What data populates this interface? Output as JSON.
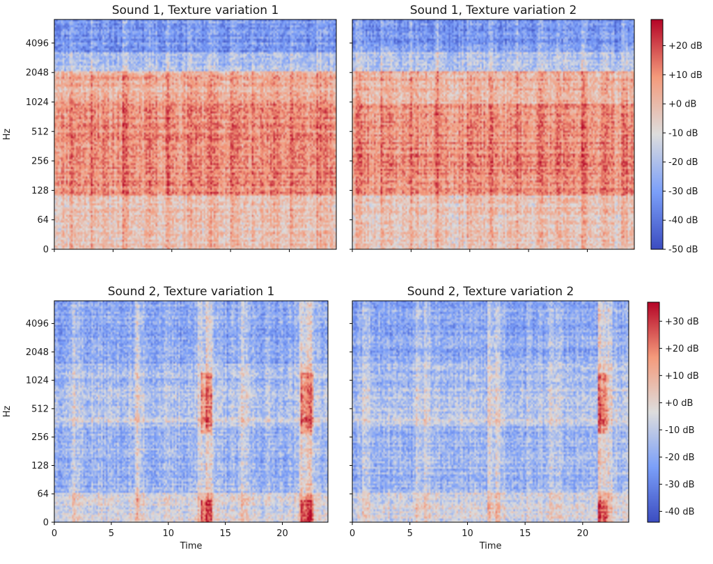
{
  "chart_data": [
    {
      "type": "heatmap",
      "subtype": "spectrogram",
      "title": "Sound 1, Texture variation 1",
      "ylabel": "Hz",
      "xlabel": "",
      "y_scale": "log2",
      "y_ticks": [
        "0",
        "64",
        "128",
        "256",
        "512",
        "1024",
        "2048",
        "4096"
      ],
      "xlim": [
        0,
        24
      ],
      "x_ticks": [],
      "colorbar_group": 0,
      "profile": "sound1",
      "seed": 11,
      "onsets": [
        1.3,
        3.2,
        5.8,
        7.9,
        9.6,
        11.4,
        13.1,
        15.0,
        16.9,
        18.7,
        20.1,
        22.4
      ]
    },
    {
      "type": "heatmap",
      "subtype": "spectrogram",
      "title": "Sound 1, Texture variation 2",
      "ylabel": "",
      "xlabel": "",
      "y_scale": "log2",
      "y_ticks": [],
      "xlim": [
        0,
        24
      ],
      "x_ticks": [],
      "colorbar_group": 0,
      "profile": "sound1",
      "seed": 23,
      "onsets": [
        0.4,
        2.5,
        4.9,
        7.2,
        9.8,
        11.6,
        13.9,
        15.8,
        17.4,
        19.6,
        21.3,
        23.0
      ]
    },
    {
      "type": "heatmap",
      "subtype": "spectrogram",
      "title": "Sound 2, Texture variation 1",
      "ylabel": "Hz",
      "xlabel": "Time",
      "y_scale": "log2",
      "y_ticks": [
        "0",
        "64",
        "128",
        "256",
        "512",
        "1024",
        "2048",
        "4096"
      ],
      "xlim": [
        0,
        24
      ],
      "x_ticks": [
        "0",
        "5",
        "10",
        "15",
        "20"
      ],
      "colorbar_group": 1,
      "profile": "sound2",
      "seed": 37,
      "onsets": [
        1.6,
        7.2,
        12.6,
        13.4,
        16.5,
        21.6,
        22.3
      ],
      "hot_spots": [
        [
          12.8,
          13.8
        ],
        [
          21.5,
          22.6
        ]
      ]
    },
    {
      "type": "heatmap",
      "subtype": "spectrogram",
      "title": "Sound 2, Texture variation 2",
      "ylabel": "",
      "xlabel": "Time",
      "y_scale": "log2",
      "y_ticks": [],
      "xlim": [
        0,
        24
      ],
      "x_ticks": [
        "0",
        "5",
        "10",
        "15",
        "20"
      ],
      "colorbar_group": 1,
      "profile": "sound2",
      "seed": 53,
      "onsets": [
        0.9,
        5.6,
        6.3,
        11.8,
        12.5,
        17.2,
        21.4,
        22.3
      ],
      "hot_spots": [
        [
          21.3,
          22.1
        ]
      ]
    }
  ],
  "colorbars": [
    {
      "labels": [
        "+20 dB",
        "+10 dB",
        "+0 dB",
        "-10 dB",
        "-20 dB",
        "-30 dB",
        "-40 dB",
        "-50 dB"
      ],
      "values": [
        20,
        10,
        0,
        -10,
        -20,
        -30,
        -40,
        -50
      ],
      "range": [
        -50,
        29
      ]
    },
    {
      "labels": [
        "+30 dB",
        "+20 dB",
        "+10 dB",
        "+0 dB",
        "-10 dB",
        "-20 dB",
        "-30 dB",
        "-40 dB"
      ],
      "values": [
        30,
        20,
        10,
        0,
        -10,
        -20,
        -30,
        -40
      ],
      "range": [
        -44,
        37
      ]
    }
  ],
  "colors": {
    "cold": "#3b4cc0",
    "neutral": "#dddddd",
    "hot": "#b40426",
    "axis": "#000000"
  },
  "colormap": "coolwarm"
}
